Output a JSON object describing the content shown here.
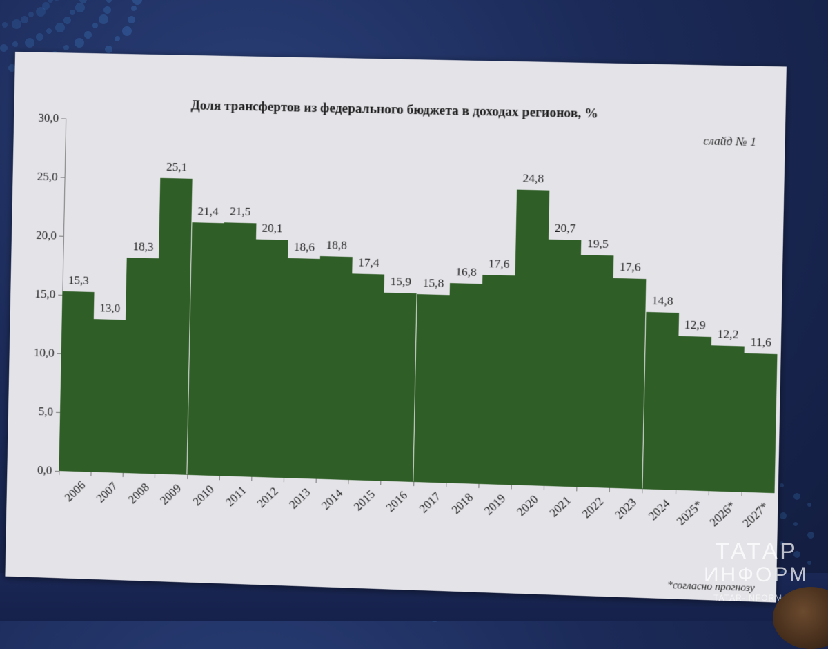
{
  "slide": {
    "title": "Доля трансфертов из федерального бюджета в доходах регионов, %",
    "slide_number": "слайд № 1",
    "footnote": "*согласно прогнозу"
  },
  "watermark": {
    "line1": "ТАТАР",
    "line2": "ИНФОРМ",
    "site": "TATAR-INFORM.RU"
  },
  "colors": {
    "bar": "#2f5e26",
    "slide_bg": "#e4e3e8",
    "background": "#1b2a58"
  },
  "chart_data": {
    "type": "bar",
    "title": "Доля трансфертов из федерального бюджета в доходах регионов, %",
    "xlabel": "",
    "ylabel": "%",
    "ylim": [
      0,
      30
    ],
    "yticks": [
      "0,0",
      "5,0",
      "10,0",
      "15,0",
      "20,0",
      "25,0",
      "30,0"
    ],
    "grid": false,
    "legend": null,
    "categories": [
      "2006",
      "2007",
      "2008",
      "2009",
      "2010",
      "2011",
      "2012",
      "2013",
      "2014",
      "2015",
      "2016",
      "2017",
      "2018",
      "2019",
      "2020",
      "2021",
      "2022",
      "2023",
      "2024",
      "2025*",
      "2026*",
      "2027*"
    ],
    "values": [
      15.3,
      13.0,
      18.3,
      25.1,
      21.4,
      21.5,
      20.1,
      18.6,
      18.8,
      17.4,
      15.9,
      15.8,
      16.8,
      17.6,
      24.8,
      20.7,
      19.5,
      17.6,
      14.8,
      12.9,
      12.2,
      11.6
    ],
    "value_labels": [
      "15,3",
      "13,0",
      "18,3",
      "25,1",
      "21,4",
      "21,5",
      "20,1",
      "18,6",
      "18,8",
      "17,4",
      "15,9",
      "15,8",
      "16,8",
      "17,6",
      "24,8",
      "20,7",
      "19,5",
      "17,6",
      "14,8",
      "12,9",
      "12,2",
      "11,6"
    ],
    "annotations": [
      "слайд № 1",
      "*согласно прогнозу"
    ]
  }
}
